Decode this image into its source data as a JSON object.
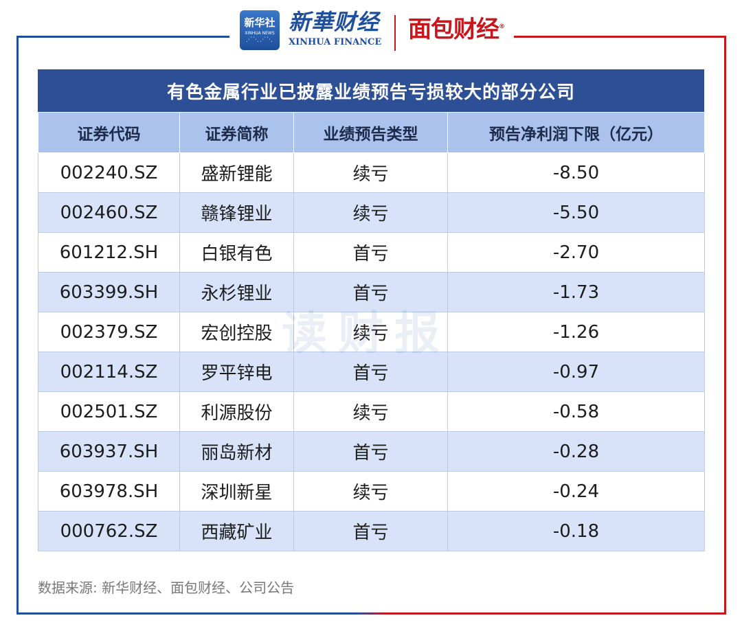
{
  "header": {
    "xinhua_badge": {
      "cn": "新华社",
      "en": "XINHUA NEWS"
    },
    "xinhua_finance": {
      "cn": "新華财经",
      "en": "XINHUA FINANCE"
    },
    "mianbao": {
      "cn": "面包财经",
      "mark": "®"
    }
  },
  "colors": {
    "brand_blue": "#1f4f9c",
    "brand_red": "#c8161d",
    "title_bar": "#2d4f95",
    "header_row": "#aac2ec",
    "stripe": "#d8e3f9"
  },
  "table": {
    "title": "有色金属行业已披露业绩预告亏损较大的部分公司",
    "columns": [
      "证券代码",
      "证券简称",
      "业绩预告类型",
      "预告净利润下限（亿元）"
    ],
    "rows": [
      [
        "002240.SZ",
        "盛新锂能",
        "续亏",
        "-8.50"
      ],
      [
        "002460.SZ",
        "赣锋锂业",
        "续亏",
        "-5.50"
      ],
      [
        "601212.SH",
        "白银有色",
        "首亏",
        "-2.70"
      ],
      [
        "603399.SH",
        "永杉锂业",
        "首亏",
        "-1.73"
      ],
      [
        "002379.SZ",
        "宏创控股",
        "续亏",
        "-1.26"
      ],
      [
        "002114.SZ",
        "罗平锌电",
        "首亏",
        "-0.97"
      ],
      [
        "002501.SZ",
        "利源股份",
        "续亏",
        "-0.58"
      ],
      [
        "603937.SH",
        "丽岛新材",
        "首亏",
        "-0.28"
      ],
      [
        "603978.SH",
        "深圳新星",
        "续亏",
        "-0.24"
      ],
      [
        "000762.SZ",
        "西藏矿业",
        "首亏",
        "-0.18"
      ]
    ]
  },
  "watermark": "读财报",
  "footer": {
    "source": "数据来源: 新华财经、面包财经、公司公告"
  }
}
